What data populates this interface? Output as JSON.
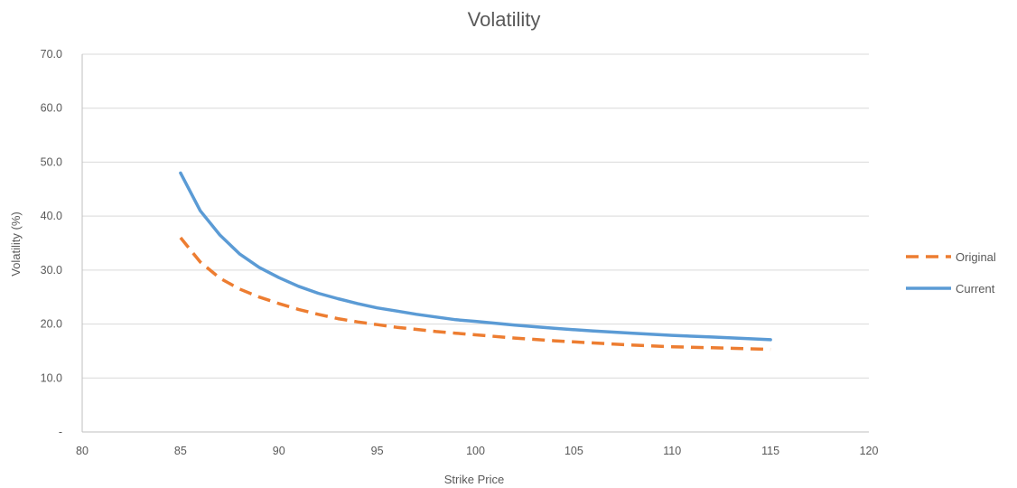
{
  "chart_data": {
    "type": "line",
    "title": "Volatility",
    "xlabel": "Strike Price",
    "ylabel": "Volatility (%)",
    "xlim": [
      80,
      120
    ],
    "ylim": [
      0,
      70
    ],
    "x_ticks": [
      80,
      85,
      90,
      95,
      100,
      105,
      110,
      115,
      120
    ],
    "x_tick_labels": [
      "80",
      "85",
      "90",
      "95",
      "100",
      "105",
      "110",
      "115",
      "120"
    ],
    "y_ticks": [
      0,
      10,
      20,
      30,
      40,
      50,
      60,
      70
    ],
    "y_tick_labels": [
      "-",
      "10.0",
      "20.0",
      "30.0",
      "40.0",
      "50.0",
      "60.0",
      "70.0"
    ],
    "grid": true,
    "legend_position": "right",
    "series": [
      {
        "name": "Original",
        "color": "#ed7d31",
        "style": "dashed",
        "x": [
          85,
          86,
          87,
          88,
          89,
          90,
          91,
          92,
          93,
          94,
          95,
          96,
          97,
          98,
          99,
          100,
          102,
          104,
          106,
          108,
          110,
          112,
          115
        ],
        "y": [
          36.0,
          31.5,
          28.5,
          26.5,
          25.0,
          23.8,
          22.7,
          21.8,
          21.0,
          20.4,
          19.9,
          19.4,
          19.0,
          18.6,
          18.3,
          18.0,
          17.4,
          16.9,
          16.5,
          16.1,
          15.8,
          15.6,
          15.3
        ]
      },
      {
        "name": "Current",
        "color": "#5b9bd5",
        "style": "solid",
        "x": [
          85,
          86,
          87,
          88,
          89,
          90,
          91,
          92,
          93,
          94,
          95,
          96,
          97,
          98,
          99,
          100,
          102,
          104,
          106,
          108,
          110,
          112,
          115
        ],
        "y": [
          48.0,
          41.0,
          36.5,
          33.0,
          30.5,
          28.6,
          27.0,
          25.7,
          24.7,
          23.8,
          23.0,
          22.4,
          21.8,
          21.3,
          20.8,
          20.5,
          19.8,
          19.2,
          18.7,
          18.3,
          17.9,
          17.6,
          17.1
        ]
      }
    ]
  }
}
